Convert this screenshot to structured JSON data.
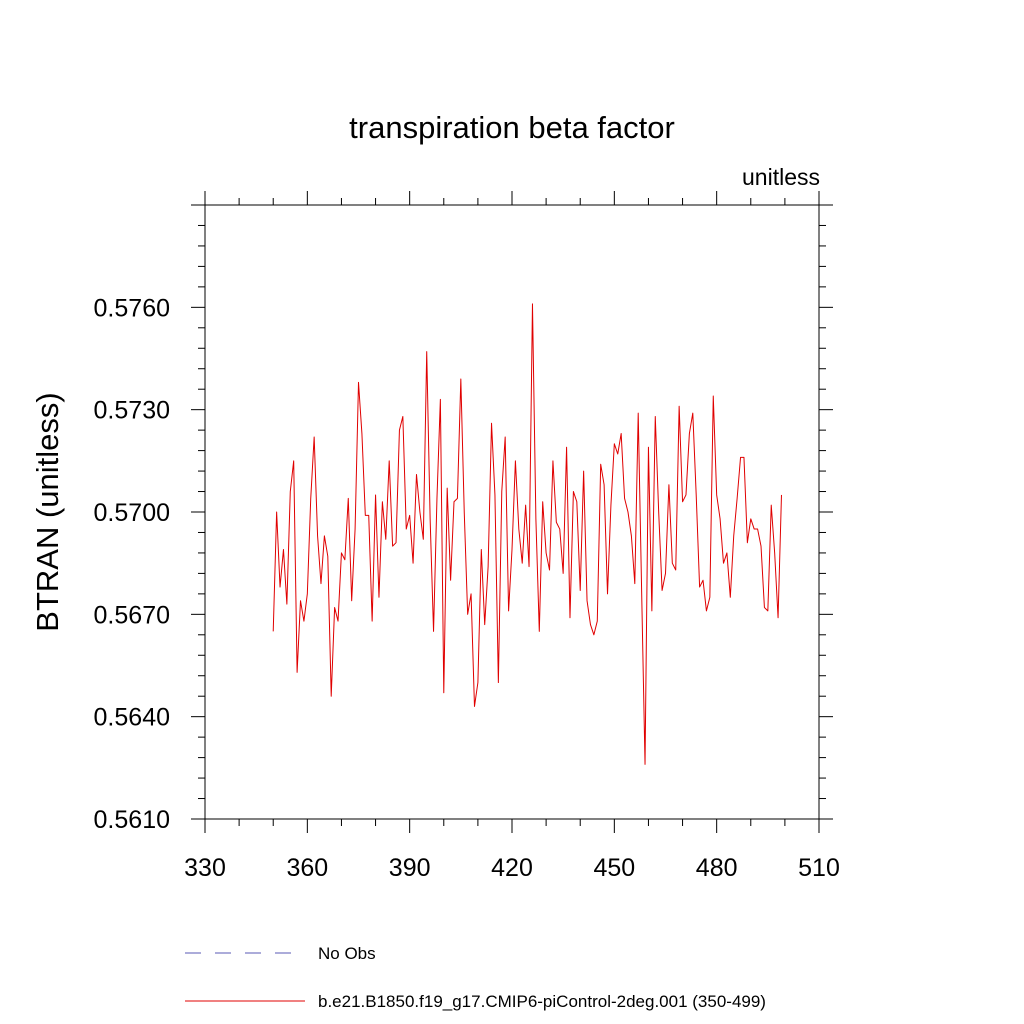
{
  "chart_data": {
    "type": "line",
    "title": "transpiration beta factor",
    "units_label": "unitless",
    "ylabel": "BTRAN  (unitless)",
    "xlabel": "",
    "xlim": [
      330,
      510
    ],
    "ylim": [
      0.561,
      0.579
    ],
    "x_ticks": [
      330,
      360,
      390,
      420,
      450,
      480,
      510
    ],
    "x_tick_labels": [
      "330",
      "360",
      "390",
      "420",
      "450",
      "480",
      "510"
    ],
    "y_ticks": [
      0.561,
      0.564,
      0.567,
      0.57,
      0.573,
      0.576
    ],
    "y_tick_labels": [
      "0.5610",
      "0.5640",
      "0.5670",
      "0.5700",
      "0.5730",
      "0.5760"
    ],
    "grid": false,
    "legend": [
      {
        "label": "No Obs",
        "color": "#5a5ab4",
        "dash": "dashed"
      },
      {
        "label": "b.e21.B1850.f19_g17.CMIP6-piControl-2deg.001 (350-499)",
        "color": "#e00000",
        "dash": "solid"
      }
    ],
    "series": [
      {
        "name": "b.e21.B1850.f19_g17.CMIP6-piControl-2deg.001 (350-499)",
        "color": "#e00000",
        "x_start": 350,
        "x_step": 1,
        "values": [
          0.5665,
          0.57,
          0.5678,
          0.5689,
          0.5673,
          0.5706,
          0.5715,
          0.5653,
          0.5674,
          0.5668,
          0.5676,
          0.5704,
          0.5722,
          0.5693,
          0.5679,
          0.5693,
          0.5687,
          0.5646,
          0.5672,
          0.5668,
          0.5688,
          0.5686,
          0.5704,
          0.5674,
          0.5695,
          0.5738,
          0.5723,
          0.5699,
          0.5699,
          0.5668,
          0.5705,
          0.5675,
          0.5703,
          0.5692,
          0.5715,
          0.569,
          0.5691,
          0.5724,
          0.5728,
          0.5695,
          0.5699,
          0.5685,
          0.5711,
          0.57,
          0.5692,
          0.5747,
          0.5698,
          0.5665,
          0.5704,
          0.5733,
          0.5647,
          0.5707,
          0.568,
          0.5703,
          0.5704,
          0.5739,
          0.57,
          0.567,
          0.5676,
          0.5643,
          0.565,
          0.5689,
          0.5667,
          0.5684,
          0.5726,
          0.5705,
          0.565,
          0.5706,
          0.5722,
          0.5671,
          0.5689,
          0.5715,
          0.5695,
          0.5685,
          0.5702,
          0.5684,
          0.5761,
          0.5698,
          0.5665,
          0.5703,
          0.5688,
          0.5683,
          0.5715,
          0.5697,
          0.5695,
          0.5682,
          0.5719,
          0.5669,
          0.5706,
          0.5703,
          0.5677,
          0.5712,
          0.5674,
          0.5667,
          0.5664,
          0.5668,
          0.5714,
          0.5708,
          0.5676,
          0.5702,
          0.572,
          0.5717,
          0.5723,
          0.5704,
          0.57,
          0.5693,
          0.5679,
          0.5729,
          0.5677,
          0.5626,
          0.5719,
          0.5671,
          0.5728,
          0.57,
          0.5677,
          0.5682,
          0.5708,
          0.5685,
          0.5683,
          0.5731,
          0.5703,
          0.5705,
          0.5723,
          0.5729,
          0.5705,
          0.5678,
          0.568,
          0.5671,
          0.5675,
          0.5734,
          0.5705,
          0.5698,
          0.5685,
          0.5688,
          0.5675,
          0.5693,
          0.5704,
          0.5716,
          0.5716,
          0.5691,
          0.5698,
          0.5695,
          0.5695,
          0.569,
          0.5672,
          0.5671,
          0.5702,
          0.5688,
          0.5669,
          0.5705
        ]
      }
    ]
  }
}
